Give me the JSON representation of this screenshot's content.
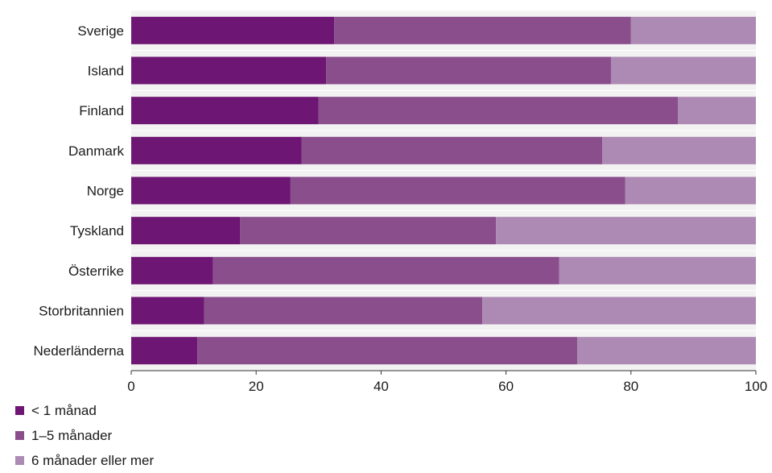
{
  "chart_data": {
    "type": "bar",
    "orientation": "horizontal",
    "stacked": true,
    "title": "",
    "xlabel": "",
    "ylabel": "",
    "xlim": [
      0,
      100
    ],
    "x_ticks": [
      0,
      20,
      40,
      60,
      80,
      100
    ],
    "grid": true,
    "legend_position": "bottom-left",
    "categories": [
      "Sverige",
      "Island",
      "Finland",
      "Danmark",
      "Norge",
      "Tyskland",
      "Österrike",
      "Storbritannien",
      "Nederländerna"
    ],
    "series": [
      {
        "name": "< 1 månad",
        "color": "#6e1674",
        "values": [
          32.5,
          31.2,
          30.0,
          27.3,
          25.5,
          17.4,
          13.1,
          11.7,
          10.6
        ]
      },
      {
        "name": "1–5 månader",
        "color": "#8a4e8d",
        "values": [
          47.5,
          45.6,
          57.5,
          48.1,
          53.6,
          41.0,
          55.4,
          44.5,
          60.8
        ]
      },
      {
        "name": "6 månader eller mer",
        "color": "#ad8ab3",
        "values": [
          20.0,
          23.2,
          12.5,
          24.6,
          20.9,
          41.6,
          31.5,
          43.8,
          28.6
        ]
      }
    ],
    "plot_background": "#f2f2f2",
    "gridline_color": "#ffffff"
  }
}
